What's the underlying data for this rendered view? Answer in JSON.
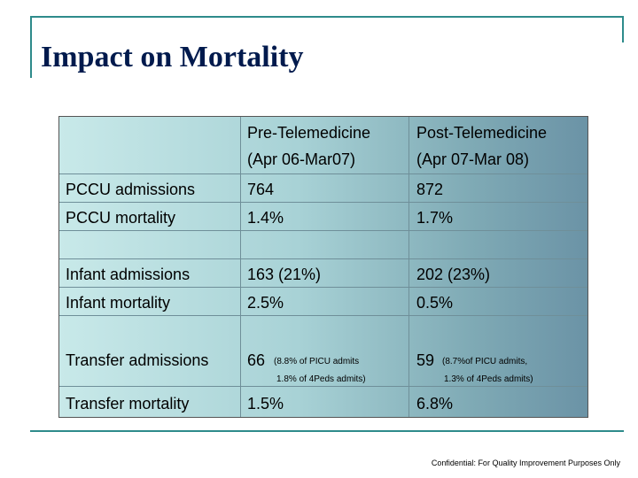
{
  "slide": {
    "title": "Impact on Mortality",
    "footer": "Confidential: For Quality Improvement Purposes Only"
  },
  "table": {
    "headers": {
      "pre_line1": "Pre-Telemedicine",
      "pre_line2": "(Apr 06-Mar07)",
      "post_line1": "Post-Telemedicine",
      "post_line2": "(Apr 07-Mar 08)"
    },
    "rows": [
      {
        "label": "PCCU admissions",
        "pre": "764",
        "post": "872"
      },
      {
        "label": "PCCU mortality",
        "pre": "1.4%",
        "post": "1.7%"
      },
      {
        "label": "Infant admissions",
        "pre": "163 (21%)",
        "post": "202 (23%)"
      },
      {
        "label": "Infant mortality",
        "pre": "2.5%",
        "post": "0.5%"
      },
      {
        "label": "Transfer admissions",
        "pre": "66",
        "pre_note1": "(8.8% of PICU admits",
        "pre_note2": "1.8% of 4Peds admits)",
        "post": "59",
        "post_note1": "(8.7%of PICU admits,",
        "post_note2": "1.3% of 4Peds admits)"
      },
      {
        "label": "Transfer mortality",
        "pre": "1.5%",
        "post": "6.8%"
      }
    ]
  },
  "colors": {
    "frame": "#2e8b8b",
    "title": "#001a4d",
    "table_left": "#c8e9e9",
    "table_right": "#6b93a6"
  }
}
